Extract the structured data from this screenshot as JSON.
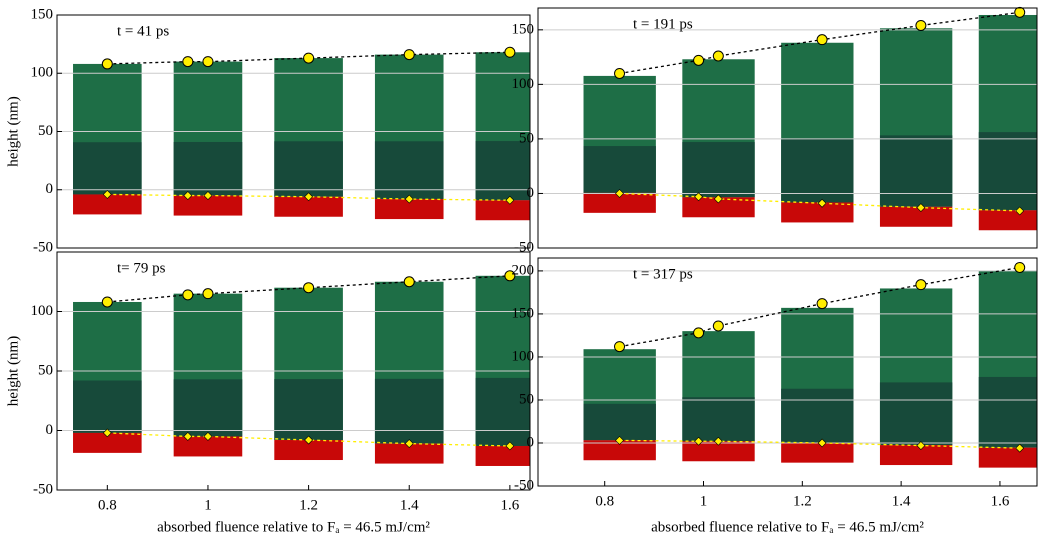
{
  "chart_data": [
    {
      "type": "line",
      "title": "t = 41 ps",
      "ylabel": "height (nm)",
      "x": [
        0.8,
        0.96,
        1.0,
        1.2,
        1.4,
        1.6
      ],
      "xlim": [
        0.7,
        1.64
      ],
      "series": [
        {
          "color": "#ffee00",
          "values": [
            108,
            110,
            110,
            113,
            116,
            118
          ]
        },
        {
          "color": "#ffee00",
          "values": [
            -4,
            -5,
            -5,
            -6,
            -8,
            -9
          ]
        }
      ],
      "ylim": [
        -50,
        150
      ],
      "yticks": [
        -50,
        0,
        50,
        100,
        150
      ],
      "grid": true
    },
    {
      "type": "line",
      "title": "t = 191 ps",
      "x": [
        0.83,
        0.99,
        1.03,
        1.24,
        1.44,
        1.64
      ],
      "xlim": [
        0.665,
        1.675
      ],
      "series": [
        {
          "color": "#ffee00",
          "values": [
            110,
            122,
            126,
            141,
            154,
            166
          ]
        },
        {
          "color": "#ffee00",
          "values": [
            0,
            -3,
            -5,
            -9,
            -13,
            -16
          ]
        }
      ],
      "ylim": [
        -50,
        170
      ],
      "yticks": [
        -50,
        0,
        50,
        100,
        150
      ],
      "grid": true
    },
    {
      "type": "line",
      "title": "t= 79 ps",
      "ylabel": "height (nm)",
      "xlabel": "absorbed  fluence  relative  to  Fₐ = 46.5 mJ/cm²",
      "x": [
        0.8,
        0.96,
        1.0,
        1.2,
        1.4,
        1.6
      ],
      "xlim": [
        0.7,
        1.64
      ],
      "xticks": [
        0.8,
        1,
        1.2,
        1.4,
        1.6
      ],
      "series": [
        {
          "color": "#ffee00",
          "values": [
            108,
            114,
            115,
            120,
            125,
            130
          ]
        },
        {
          "color": "#ffee00",
          "values": [
            -2,
            -5,
            -5,
            -8,
            -11,
            -13
          ]
        }
      ],
      "ylim": [
        -50,
        150
      ],
      "yticks": [
        -50,
        0,
        50,
        100
      ],
      "grid": true
    },
    {
      "type": "line",
      "title": "t = 317 ps",
      "xlabel": "absorbed  fluence  relative  to  Fₐ = 46.5 mJ/cm²",
      "x": [
        0.83,
        0.99,
        1.03,
        1.24,
        1.44,
        1.64
      ],
      "xlim": [
        0.665,
        1.675
      ],
      "xticks": [
        0.8,
        1,
        1.2,
        1.4,
        1.6
      ],
      "series": [
        {
          "color": "#ffee00",
          "values": [
            112,
            128,
            136,
            162,
            184,
            204
          ]
        },
        {
          "color": "#ffee00",
          "values": [
            3,
            2,
            2,
            0,
            -3,
            -6
          ]
        }
      ],
      "ylim": [
        -50,
        215
      ],
      "yticks": [
        -50,
        0,
        50,
        100,
        150,
        200
      ],
      "grid": true
    }
  ]
}
